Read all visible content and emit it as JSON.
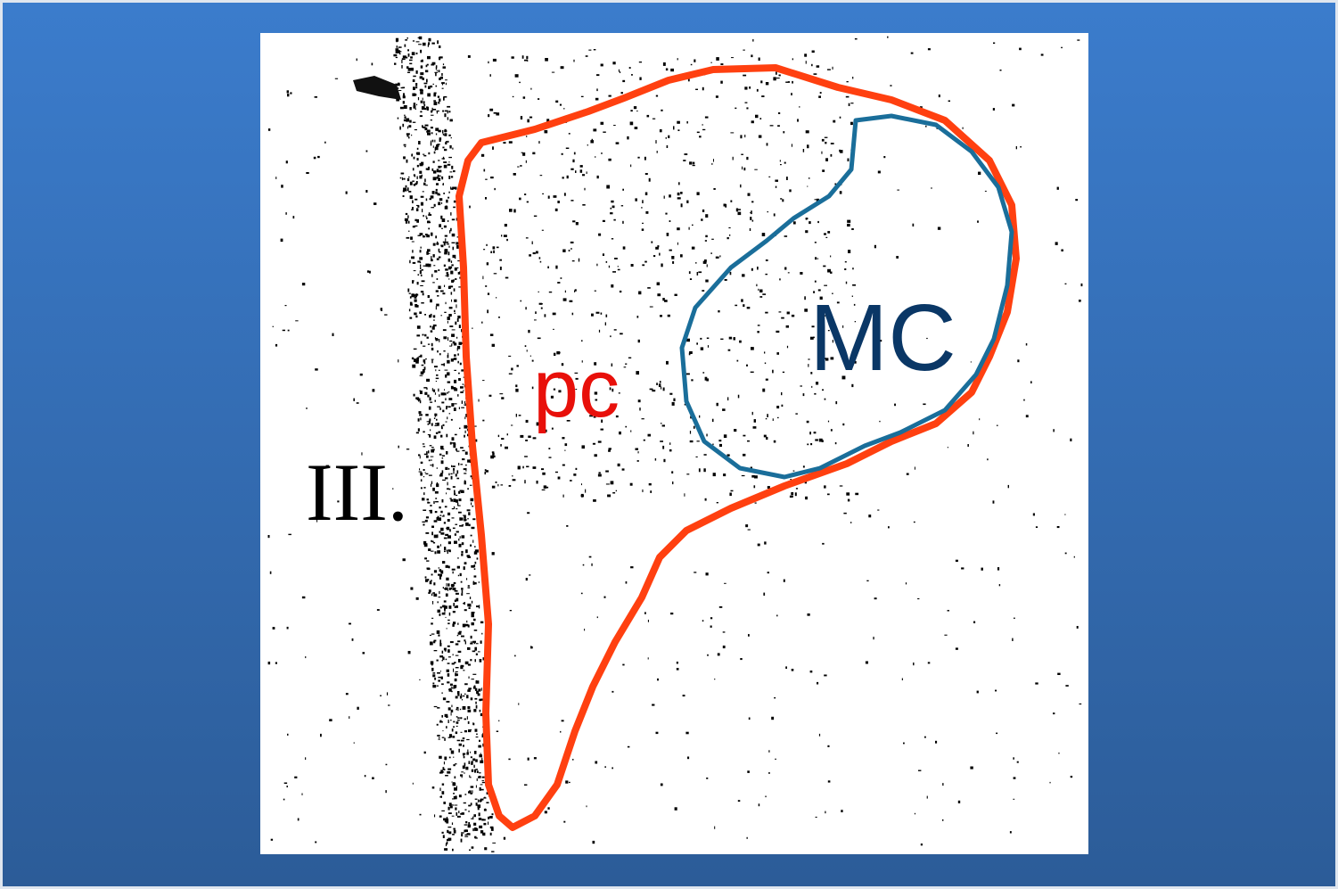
{
  "slide": {
    "labels": {
      "ventricle": "III.",
      "parvocellular": "pc",
      "magnocellular": "MC"
    }
  }
}
